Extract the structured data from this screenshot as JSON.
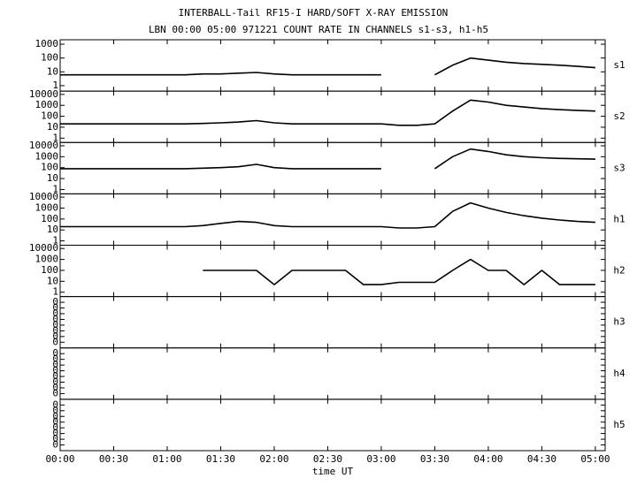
{
  "chart_data": {
    "type": "line",
    "title": "INTERBALL-Tail RF15-I HARD/SOFT X-RAY EMISSION",
    "subtitle": "LBN 00:00 05:00 971221  COUNT RATE IN CHANNELS s1-s3, h1-h5",
    "xlabel": "time UT",
    "xlim": [
      0,
      305.5
    ],
    "xticks": [
      {
        "value": 0,
        "label": "00:00"
      },
      {
        "value": 30,
        "label": "00:30"
      },
      {
        "value": 60,
        "label": "01:00"
      },
      {
        "value": 90,
        "label": "01:30"
      },
      {
        "value": 120,
        "label": "02:00"
      },
      {
        "value": 150,
        "label": "02:30"
      },
      {
        "value": 180,
        "label": "03:00"
      },
      {
        "value": 210,
        "label": "03:30"
      },
      {
        "value": 240,
        "label": "04:00"
      },
      {
        "value": 270,
        "label": "04:30"
      },
      {
        "value": 300,
        "label": "05:00"
      }
    ],
    "x": [
      0,
      10,
      20,
      30,
      40,
      50,
      60,
      70,
      80,
      90,
      100,
      110,
      120,
      130,
      140,
      150,
      160,
      170,
      180,
      190,
      200,
      210,
      220,
      230,
      240,
      250,
      260,
      270,
      280,
      290,
      300
    ],
    "color": "#000000",
    "panels": [
      {
        "name": "s1",
        "log": true,
        "ylim": [
          0.4,
          2100
        ],
        "yticks": [
          1,
          10,
          100,
          1000
        ],
        "values": [
          6,
          6,
          6,
          6,
          6,
          6,
          6,
          6,
          7,
          7,
          8,
          9,
          7,
          6,
          6,
          6,
          6,
          6,
          6,
          null,
          null,
          6,
          30,
          100,
          70,
          50,
          40,
          35,
          30,
          25,
          20
        ]
      },
      {
        "name": "s2",
        "log": true,
        "ylim": [
          0.4,
          20000
        ],
        "yticks": [
          1,
          10,
          100,
          1000,
          10000
        ],
        "values": [
          20,
          20,
          20,
          20,
          20,
          20,
          20,
          20,
          22,
          25,
          30,
          40,
          25,
          20,
          20,
          20,
          20,
          20,
          20,
          15,
          15,
          20,
          300,
          3000,
          2000,
          1000,
          700,
          500,
          400,
          350,
          300
        ]
      },
      {
        "name": "s3",
        "log": true,
        "ylim": [
          0.4,
          20000
        ],
        "yticks": [
          1,
          10,
          100,
          1000,
          10000
        ],
        "values": [
          80,
          80,
          80,
          80,
          80,
          80,
          80,
          80,
          90,
          100,
          120,
          200,
          100,
          80,
          80,
          80,
          80,
          80,
          80,
          null,
          null,
          80,
          1000,
          5000,
          3000,
          1500,
          1000,
          800,
          700,
          650,
          600
        ]
      },
      {
        "name": "h1",
        "log": true,
        "ylim": [
          0.4,
          20000
        ],
        "yticks": [
          1,
          10,
          100,
          1000,
          10000
        ],
        "values": [
          20,
          20,
          20,
          20,
          20,
          20,
          20,
          20,
          25,
          40,
          60,
          50,
          25,
          20,
          20,
          20,
          20,
          20,
          20,
          15,
          15,
          20,
          500,
          3000,
          1000,
          400,
          200,
          120,
          80,
          60,
          50
        ]
      },
      {
        "name": "h2",
        "log": true,
        "ylim": [
          0.4,
          20000
        ],
        "yticks": [
          1,
          10,
          100,
          1000,
          10000
        ],
        "values": [
          null,
          null,
          null,
          null,
          null,
          null,
          null,
          null,
          100,
          100,
          100,
          100,
          5,
          100,
          100,
          100,
          100,
          5,
          5,
          8,
          8,
          8,
          100,
          1000,
          100,
          100,
          5,
          100,
          5,
          5,
          5
        ]
      },
      {
        "name": "h3",
        "log": false,
        "ylim": [
          0,
          9
        ],
        "yticks": [
          {
            "value": 1,
            "label": "0"
          },
          {
            "value": 2,
            "label": "0"
          },
          {
            "value": 3,
            "label": "0"
          },
          {
            "value": 4,
            "label": "0"
          },
          {
            "value": 5,
            "label": "0"
          },
          {
            "value": 6,
            "label": "0"
          },
          {
            "value": 7,
            "label": "0"
          },
          {
            "value": 8,
            "label": "0"
          }
        ]
      },
      {
        "name": "h4",
        "log": false,
        "ylim": [
          0,
          9
        ],
        "yticks": [
          {
            "value": 1,
            "label": "0"
          },
          {
            "value": 2,
            "label": "0"
          },
          {
            "value": 3,
            "label": "0"
          },
          {
            "value": 4,
            "label": "0"
          },
          {
            "value": 5,
            "label": "0"
          },
          {
            "value": 6,
            "label": "0"
          },
          {
            "value": 7,
            "label": "0"
          },
          {
            "value": 8,
            "label": "0"
          }
        ]
      },
      {
        "name": "h5",
        "log": false,
        "ylim": [
          0,
          9
        ],
        "yticks": [
          {
            "value": 1,
            "label": "0"
          },
          {
            "value": 2,
            "label": "0"
          },
          {
            "value": 3,
            "label": "0"
          },
          {
            "value": 4,
            "label": "0"
          },
          {
            "value": 5,
            "label": "0"
          },
          {
            "value": 6,
            "label": "0"
          },
          {
            "value": 7,
            "label": "0"
          },
          {
            "value": 8,
            "label": "0"
          }
        ]
      }
    ]
  }
}
